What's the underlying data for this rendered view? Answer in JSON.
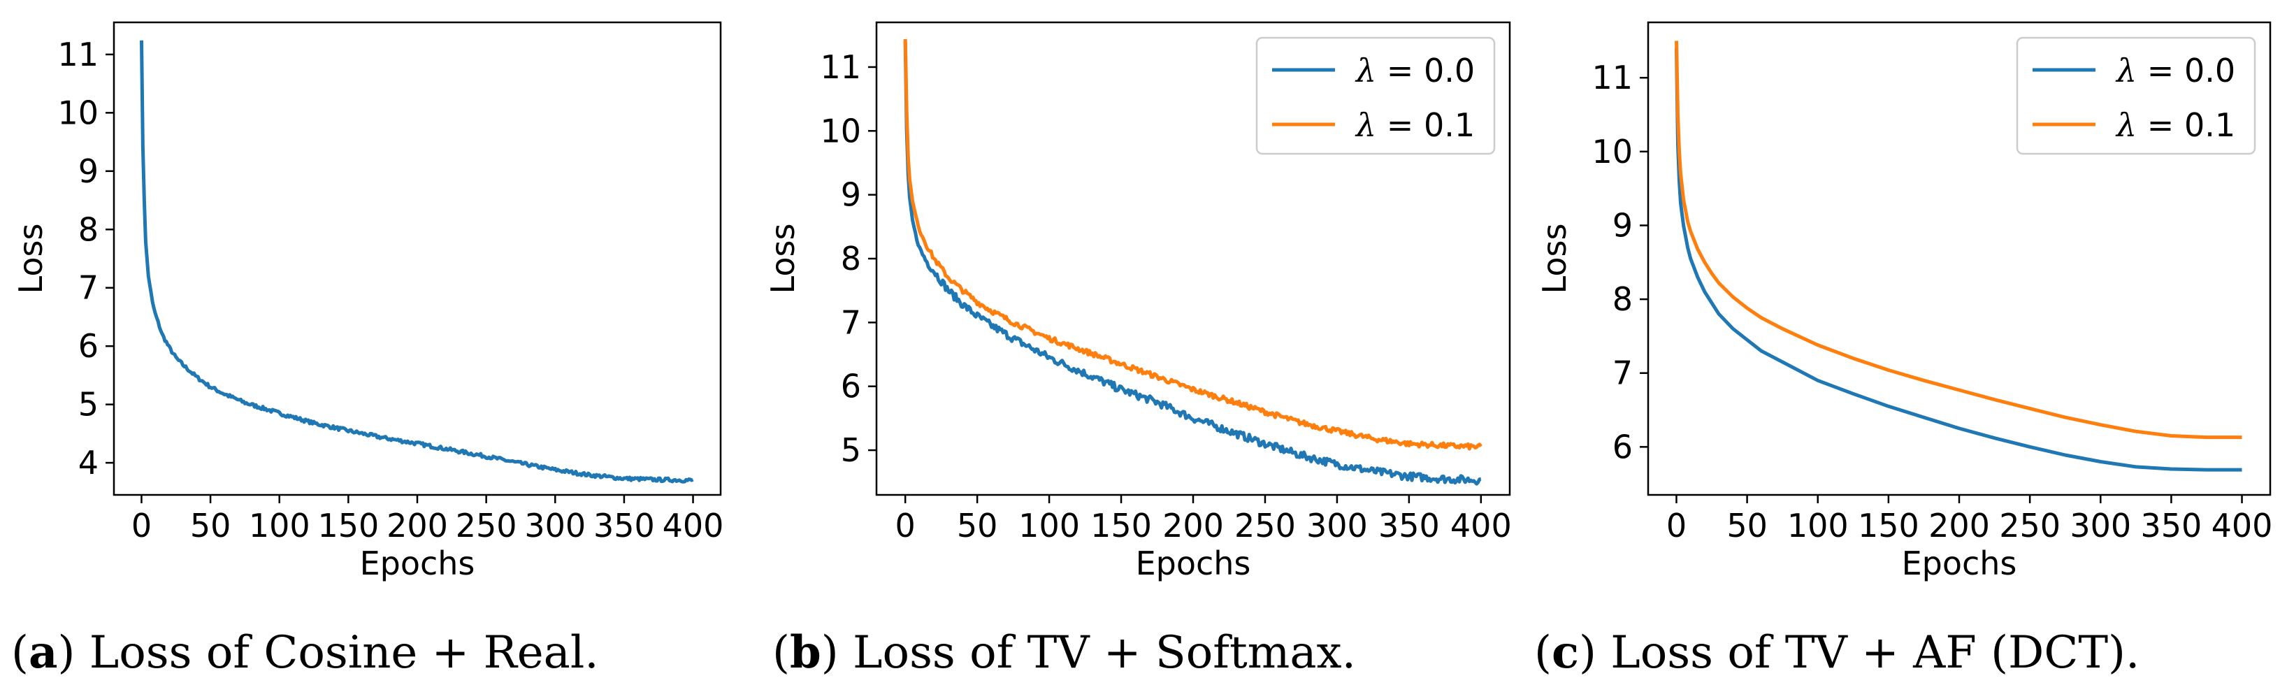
{
  "chart_data": [
    {
      "type": "line",
      "xlabel": "Epochs",
      "ylabel": "Loss",
      "xlim": [
        -20,
        420
      ],
      "ylim": [
        3.45,
        11.55
      ],
      "xticks": [
        0,
        50,
        100,
        150,
        200,
        250,
        300,
        350,
        400
      ],
      "yticks": [
        4,
        5,
        6,
        7,
        8,
        9,
        10,
        11
      ],
      "legend": null,
      "caption_letter": "a",
      "caption_text": " Loss of Cosine + Real.",
      "series": [
        {
          "name": "",
          "color": "#1f77b4",
          "noise": 0.03,
          "x": [
            0,
            1,
            2,
            3,
            5,
            8,
            10,
            15,
            20,
            25,
            30,
            40,
            50,
            60,
            75,
            100,
            125,
            150,
            175,
            200,
            225,
            250,
            275,
            300,
            325,
            350,
            375,
            400
          ],
          "y": [
            11.25,
            9.4,
            8.5,
            7.8,
            7.2,
            6.75,
            6.55,
            6.2,
            5.98,
            5.8,
            5.68,
            5.47,
            5.3,
            5.18,
            5.03,
            4.85,
            4.68,
            4.55,
            4.43,
            4.33,
            4.22,
            4.11,
            3.99,
            3.88,
            3.79,
            3.73,
            3.71,
            3.7
          ]
        }
      ]
    },
    {
      "type": "line",
      "xlabel": "Epochs",
      "ylabel": "Loss",
      "xlim": [
        -20,
        420
      ],
      "ylim": [
        4.3,
        11.7
      ],
      "xticks": [
        0,
        50,
        100,
        150,
        200,
        250,
        300,
        350,
        400
      ],
      "yticks": [
        5,
        6,
        7,
        8,
        9,
        10,
        11
      ],
      "legend": "top-right",
      "caption_letter": "b",
      "caption_text": " Loss of TV + Softmax.",
      "series": [
        {
          "name": "λ = 0.0",
          "label_symbol": "λ",
          "label_value": " = 0.0",
          "color": "#1f77b4",
          "noise": 0.06,
          "x": [
            0,
            1,
            2,
            3,
            5,
            8,
            10,
            15,
            20,
            25,
            30,
            40,
            50,
            60,
            75,
            100,
            125,
            150,
            175,
            200,
            225,
            250,
            275,
            300,
            325,
            350,
            375,
            400
          ],
          "y": [
            11.4,
            10.0,
            9.3,
            8.95,
            8.6,
            8.3,
            8.15,
            7.95,
            7.8,
            7.65,
            7.5,
            7.28,
            7.1,
            6.95,
            6.75,
            6.45,
            6.2,
            5.95,
            5.75,
            5.5,
            5.3,
            5.1,
            4.92,
            4.78,
            4.67,
            4.59,
            4.55,
            4.53
          ]
        },
        {
          "name": "λ = 0.1",
          "label_symbol": "λ",
          "label_value": " = 0.1",
          "color": "#ff7f0e",
          "noise": 0.04,
          "x": [
            0,
            1,
            2,
            3,
            5,
            8,
            10,
            15,
            20,
            25,
            30,
            40,
            50,
            60,
            75,
            100,
            125,
            150,
            175,
            200,
            225,
            250,
            275,
            300,
            325,
            350,
            375,
            400
          ],
          "y": [
            11.45,
            10.3,
            9.6,
            9.25,
            8.9,
            8.6,
            8.45,
            8.2,
            8.0,
            7.85,
            7.7,
            7.5,
            7.32,
            7.18,
            7.0,
            6.75,
            6.55,
            6.35,
            6.15,
            5.95,
            5.78,
            5.6,
            5.43,
            5.3,
            5.18,
            5.1,
            5.07,
            5.05
          ]
        }
      ]
    },
    {
      "type": "line",
      "xlabel": "Epochs",
      "ylabel": "Loss",
      "xlim": [
        -20,
        420
      ],
      "ylim": [
        5.35,
        11.75
      ],
      "xticks": [
        0,
        50,
        100,
        150,
        200,
        250,
        300,
        350,
        400
      ],
      "yticks": [
        6,
        7,
        8,
        9,
        10,
        11
      ],
      "legend": "top-right",
      "caption_letter": "c",
      "caption_text": " Loss of TV + AF (DCT).",
      "series": [
        {
          "name": "λ = 0.0",
          "label_symbol": "λ",
          "label_value": " = 0.0",
          "color": "#1f77b4",
          "noise": 0,
          "x": [
            0,
            1,
            2,
            3,
            5,
            8,
            10,
            15,
            20,
            25,
            30,
            40,
            50,
            60,
            75,
            100,
            125,
            150,
            175,
            200,
            225,
            250,
            275,
            300,
            325,
            350,
            375,
            400
          ],
          "y": [
            11.4,
            10.1,
            9.6,
            9.3,
            9.0,
            8.7,
            8.55,
            8.3,
            8.1,
            7.95,
            7.8,
            7.6,
            7.45,
            7.3,
            7.15,
            6.9,
            6.72,
            6.55,
            6.4,
            6.25,
            6.12,
            6.0,
            5.89,
            5.8,
            5.73,
            5.7,
            5.69,
            5.69
          ]
        },
        {
          "name": "λ = 0.1",
          "label_symbol": "λ",
          "label_value": " = 0.1",
          "color": "#ff7f0e",
          "noise": 0,
          "x": [
            0,
            1,
            2,
            3,
            5,
            8,
            10,
            15,
            20,
            25,
            30,
            40,
            50,
            60,
            75,
            100,
            125,
            150,
            175,
            200,
            225,
            250,
            275,
            300,
            325,
            350,
            375,
            400
          ],
          "y": [
            11.5,
            10.5,
            10.0,
            9.7,
            9.35,
            9.05,
            8.92,
            8.68,
            8.5,
            8.35,
            8.22,
            8.03,
            7.88,
            7.75,
            7.6,
            7.38,
            7.2,
            7.04,
            6.9,
            6.77,
            6.64,
            6.52,
            6.4,
            6.3,
            6.21,
            6.15,
            6.13,
            6.13
          ]
        }
      ]
    }
  ]
}
